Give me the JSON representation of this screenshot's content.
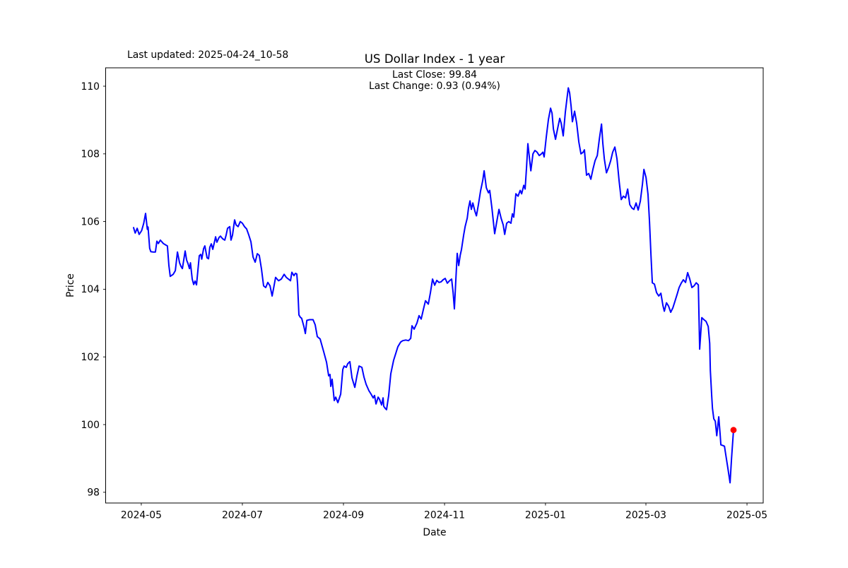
{
  "header": {
    "last_updated": "Last updated: 2025-04-24_10-58",
    "title": "US Dollar Index - 1 year",
    "annotation_line1": "Last Close: 99.84",
    "annotation_line2": "Last Change: 0.93 (0.94%)"
  },
  "chart_data": {
    "type": "line",
    "title": "US Dollar Index - 1 year",
    "xlabel": "Date",
    "ylabel": "Price",
    "series_name": "US Dollar Index",
    "date_range": [
      "2024-04-24",
      "2025-04-24"
    ],
    "ylim": [
      97.7,
      110.5
    ],
    "grid": false,
    "legend": "none",
    "line_color": "#0000ff",
    "marker_color": "#ff0000",
    "last_close": 99.84,
    "last_change": 0.93,
    "last_change_pct": "0.94%",
    "last_updated": "2025-04-24_10-58",
    "y_ticks": [
      98,
      100,
      102,
      104,
      106,
      108,
      110
    ],
    "x_ticks": [
      {
        "label": "2024-05",
        "day": 4.7
      },
      {
        "label": "2024-07",
        "day": 66.2
      },
      {
        "label": "2024-09",
        "day": 127.7
      },
      {
        "label": "2024-11",
        "day": 189.2
      },
      {
        "label": "2025-01",
        "day": 250.6
      },
      {
        "label": "2025-03",
        "day": 311.7
      },
      {
        "label": "2025-05",
        "day": 373.2
      }
    ],
    "marker_point": {
      "day": 365,
      "price": 99.84
    },
    "points": [
      [
        0,
        105.82
      ],
      [
        1,
        105.66
      ],
      [
        2.2,
        105.8
      ],
      [
        3.4,
        105.62
      ],
      [
        4.9,
        105.73
      ],
      [
        6.2,
        105.95
      ],
      [
        7.3,
        106.24
      ],
      [
        8.4,
        105.77
      ],
      [
        8.8,
        105.84
      ],
      [
        9.8,
        105.21
      ],
      [
        10.5,
        105.11
      ],
      [
        12,
        105.1
      ],
      [
        13.3,
        105.1
      ],
      [
        14.2,
        105.42
      ],
      [
        15.1,
        105.35
      ],
      [
        16.3,
        105.45
      ],
      [
        18.1,
        105.35
      ],
      [
        19.8,
        105.3
      ],
      [
        20.6,
        105.28
      ],
      [
        21.5,
        104.7
      ],
      [
        22.3,
        104.38
      ],
      [
        24.1,
        104.44
      ],
      [
        25.4,
        104.55
      ],
      [
        26.7,
        105.1
      ],
      [
        28,
        104.78
      ],
      [
        28.8,
        104.68
      ],
      [
        29.7,
        104.61
      ],
      [
        31.4,
        105.13
      ],
      [
        32.3,
        104.86
      ],
      [
        33.1,
        104.76
      ],
      [
        34,
        104.61
      ],
      [
        34.6,
        104.78
      ],
      [
        35.7,
        104.3
      ],
      [
        36.6,
        104.14
      ],
      [
        37.4,
        104.24
      ],
      [
        38.3,
        104.13
      ],
      [
        40,
        104.99
      ],
      [
        40.9,
        105.03
      ],
      [
        41.5,
        104.89
      ],
      [
        42.6,
        105.2
      ],
      [
        43.4,
        105.28
      ],
      [
        44.7,
        104.93
      ],
      [
        45.6,
        104.9
      ],
      [
        46.4,
        105.24
      ],
      [
        47.3,
        105.34
      ],
      [
        48.2,
        105.18
      ],
      [
        49.5,
        105.45
      ],
      [
        49.9,
        105.55
      ],
      [
        50.7,
        105.39
      ],
      [
        52,
        105.53
      ],
      [
        52.9,
        105.57
      ],
      [
        54.2,
        105.49
      ],
      [
        55.5,
        105.45
      ],
      [
        56.3,
        105.6
      ],
      [
        57.2,
        105.8
      ],
      [
        58.5,
        105.85
      ],
      [
        59.3,
        105.45
      ],
      [
        60.2,
        105.6
      ],
      [
        61.5,
        106.05
      ],
      [
        62.4,
        105.9
      ],
      [
        63.6,
        105.85
      ],
      [
        64.9,
        106
      ],
      [
        66.2,
        105.95
      ],
      [
        67.5,
        105.85
      ],
      [
        68.8,
        105.78
      ],
      [
        70.1,
        105.6
      ],
      [
        71.4,
        105.4
      ],
      [
        72.7,
        104.95
      ],
      [
        74,
        104.8
      ],
      [
        75.3,
        105.05
      ],
      [
        76.5,
        105
      ],
      [
        77.8,
        104.6
      ],
      [
        79.1,
        104.1
      ],
      [
        80.4,
        104.05
      ],
      [
        81.7,
        104.2
      ],
      [
        83,
        104.1
      ],
      [
        84.3,
        103.8
      ],
      [
        85.1,
        104
      ],
      [
        86.4,
        104.35
      ],
      [
        88.2,
        104.25
      ],
      [
        89.9,
        104.3
      ],
      [
        91.6,
        104.44
      ],
      [
        92.9,
        104.35
      ],
      [
        94.2,
        104.3
      ],
      [
        95.5,
        104.25
      ],
      [
        96.3,
        104.5
      ],
      [
        97.6,
        104.4
      ],
      [
        98.5,
        104.47
      ],
      [
        99.3,
        104.45
      ],
      [
        99.8,
        104.15
      ],
      [
        100.6,
        103.24
      ],
      [
        101.5,
        103.17
      ],
      [
        102.3,
        103.14
      ],
      [
        103.6,
        102.9
      ],
      [
        104.5,
        102.69
      ],
      [
        105.4,
        103.08
      ],
      [
        107.1,
        103.1
      ],
      [
        109.2,
        103.1
      ],
      [
        110.5,
        102.95
      ],
      [
        111.8,
        102.6
      ],
      [
        113.5,
        102.53
      ],
      [
        115.7,
        102.15
      ],
      [
        117.4,
        101.84
      ],
      [
        118.2,
        101.6
      ],
      [
        118.7,
        101.44
      ],
      [
        119.5,
        101.48
      ],
      [
        120,
        101.13
      ],
      [
        120.8,
        101.34
      ],
      [
        122.1,
        100.71
      ],
      [
        123,
        100.81
      ],
      [
        124.3,
        100.65
      ],
      [
        126,
        100.9
      ],
      [
        127.3,
        101.63
      ],
      [
        128.1,
        101.73
      ],
      [
        129.4,
        101.69
      ],
      [
        130.3,
        101.8
      ],
      [
        131.6,
        101.86
      ],
      [
        132.9,
        101.38
      ],
      [
        134.6,
        101.1
      ],
      [
        135.9,
        101.44
      ],
      [
        137.2,
        101.73
      ],
      [
        138.9,
        101.69
      ],
      [
        140.2,
        101.4
      ],
      [
        141.5,
        101.19
      ],
      [
        143.2,
        101
      ],
      [
        144.5,
        100.9
      ],
      [
        145.8,
        100.79
      ],
      [
        146.6,
        100.86
      ],
      [
        147.5,
        100.61
      ],
      [
        148.8,
        100.81
      ],
      [
        149.6,
        100.75
      ],
      [
        150.9,
        100.58
      ],
      [
        151.8,
        100.79
      ],
      [
        152.2,
        100.54
      ],
      [
        153.1,
        100.48
      ],
      [
        153.9,
        100.44
      ],
      [
        155.2,
        100.86
      ],
      [
        156.5,
        101.5
      ],
      [
        158.2,
        101.9
      ],
      [
        159.5,
        102.1
      ],
      [
        160.8,
        102.3
      ],
      [
        162.5,
        102.44
      ],
      [
        163.8,
        102.48
      ],
      [
        165.6,
        102.5
      ],
      [
        167.3,
        102.48
      ],
      [
        168.6,
        102.55
      ],
      [
        169.4,
        102.92
      ],
      [
        170.7,
        102.82
      ],
      [
        172.4,
        103
      ],
      [
        173.7,
        103.22
      ],
      [
        175,
        103.12
      ],
      [
        176.3,
        103.4
      ],
      [
        177.6,
        103.66
      ],
      [
        179.3,
        103.56
      ],
      [
        180.6,
        103.9
      ],
      [
        181.9,
        104.3
      ],
      [
        183.2,
        104.12
      ],
      [
        184.5,
        104.26
      ],
      [
        185.8,
        104.2
      ],
      [
        187.1,
        104.22
      ],
      [
        188.3,
        104.28
      ],
      [
        189.6,
        104.32
      ],
      [
        190.9,
        104.18
      ],
      [
        192.2,
        104.25
      ],
      [
        193.5,
        104.3
      ],
      [
        194.4,
        103.9
      ],
      [
        195.2,
        103.42
      ],
      [
        196.1,
        104.3
      ],
      [
        196.9,
        105.06
      ],
      [
        197.8,
        104.7
      ],
      [
        198.7,
        105
      ],
      [
        199.5,
        105.17
      ],
      [
        200.8,
        105.6
      ],
      [
        201.7,
        105.85
      ],
      [
        203,
        106.1
      ],
      [
        203.8,
        106.4
      ],
      [
        204.7,
        106.61
      ],
      [
        205.5,
        106.36
      ],
      [
        206.4,
        106.55
      ],
      [
        207.7,
        106.3
      ],
      [
        208.6,
        106.17
      ],
      [
        209.8,
        106.5
      ],
      [
        211.1,
        106.9
      ],
      [
        212.4,
        107.2
      ],
      [
        213.3,
        107.5
      ],
      [
        214.6,
        107
      ],
      [
        215.9,
        106.85
      ],
      [
        216.7,
        106.92
      ],
      [
        218,
        106.4
      ],
      [
        218.9,
        105.99
      ],
      [
        219.7,
        105.64
      ],
      [
        221,
        106
      ],
      [
        222.3,
        106.36
      ],
      [
        223.6,
        106.1
      ],
      [
        224.9,
        105.9
      ],
      [
        225.8,
        105.62
      ],
      [
        227,
        105.95
      ],
      [
        228.3,
        106
      ],
      [
        229.6,
        105.95
      ],
      [
        230.5,
        106.23
      ],
      [
        231.3,
        106.13
      ],
      [
        232.6,
        106.82
      ],
      [
        233.9,
        106.75
      ],
      [
        235.2,
        106.92
      ],
      [
        236.1,
        106.82
      ],
      [
        237.4,
        107.07
      ],
      [
        238.2,
        106.96
      ],
      [
        239.1,
        107.6
      ],
      [
        239.9,
        108.3
      ],
      [
        240.8,
        107.9
      ],
      [
        241.7,
        107.5
      ],
      [
        243,
        108
      ],
      [
        244.2,
        108.1
      ],
      [
        245.5,
        108.05
      ],
      [
        246.8,
        107.95
      ],
      [
        248.1,
        108
      ],
      [
        249,
        108.05
      ],
      [
        249.8,
        107.91
      ],
      [
        251.1,
        108.51
      ],
      [
        252.4,
        109.02
      ],
      [
        253.7,
        109.35
      ],
      [
        254.6,
        109.2
      ],
      [
        255.4,
        108.74
      ],
      [
        256.7,
        108.43
      ],
      [
        258,
        108.75
      ],
      [
        259.3,
        109.05
      ],
      [
        260.2,
        108.9
      ],
      [
        261.4,
        108.53
      ],
      [
        262.7,
        109.23
      ],
      [
        263.6,
        109.6
      ],
      [
        264.5,
        109.95
      ],
      [
        265.3,
        109.8
      ],
      [
        266.2,
        109.4
      ],
      [
        267,
        108.95
      ],
      [
        268.3,
        109.26
      ],
      [
        269.6,
        108.9
      ],
      [
        270.9,
        108.35
      ],
      [
        272.2,
        108
      ],
      [
        273.5,
        108.05
      ],
      [
        274.3,
        108.12
      ],
      [
        275.6,
        107.37
      ],
      [
        276.9,
        107.42
      ],
      [
        278.2,
        107.25
      ],
      [
        279.5,
        107.55
      ],
      [
        280.8,
        107.8
      ],
      [
        282.1,
        107.95
      ],
      [
        283.4,
        108.45
      ],
      [
        284.7,
        108.88
      ],
      [
        285.5,
        108.3
      ],
      [
        286.4,
        107.85
      ],
      [
        287.7,
        107.44
      ],
      [
        289,
        107.6
      ],
      [
        290.3,
        107.8
      ],
      [
        291.5,
        108.05
      ],
      [
        292.8,
        108.2
      ],
      [
        294.1,
        107.85
      ],
      [
        295.4,
        107.2
      ],
      [
        296.7,
        106.65
      ],
      [
        298,
        106.75
      ],
      [
        299.3,
        106.7
      ],
      [
        300.6,
        106.96
      ],
      [
        301.9,
        106.5
      ],
      [
        303.2,
        106.4
      ],
      [
        304.4,
        106.36
      ],
      [
        305.7,
        106.55
      ],
      [
        307,
        106.34
      ],
      [
        308.3,
        106.6
      ],
      [
        309.6,
        107.1
      ],
      [
        310.5,
        107.54
      ],
      [
        311.8,
        107.3
      ],
      [
        313,
        106.8
      ],
      [
        313.9,
        106
      ],
      [
        314.8,
        105
      ],
      [
        315.6,
        104.19
      ],
      [
        316.9,
        104.15
      ],
      [
        318.2,
        103.9
      ],
      [
        319.5,
        103.8
      ],
      [
        320.8,
        103.88
      ],
      [
        322.1,
        103.51
      ],
      [
        322.9,
        103.35
      ],
      [
        324.2,
        103.6
      ],
      [
        325.5,
        103.5
      ],
      [
        326.8,
        103.32
      ],
      [
        328.1,
        103.45
      ],
      [
        329.4,
        103.65
      ],
      [
        330.7,
        103.85
      ],
      [
        331.9,
        104.05
      ],
      [
        333.2,
        104.18
      ],
      [
        334.5,
        104.28
      ],
      [
        335.8,
        104.2
      ],
      [
        337.1,
        104.49
      ],
      [
        338.4,
        104.3
      ],
      [
        339.7,
        104.05
      ],
      [
        341,
        104.1
      ],
      [
        342.3,
        104.19
      ],
      [
        343.6,
        104.13
      ],
      [
        344.4,
        102.23
      ],
      [
        345.7,
        103.16
      ],
      [
        347,
        103.1
      ],
      [
        348.3,
        103.05
      ],
      [
        349.6,
        102.9
      ],
      [
        350.5,
        102.4
      ],
      [
        350.9,
        101.6
      ],
      [
        351.7,
        100.86
      ],
      [
        352.2,
        100.48
      ],
      [
        353,
        100.17
      ],
      [
        353.9,
        100.1
      ],
      [
        354.8,
        99.67
      ],
      [
        356,
        100.23
      ],
      [
        356.9,
        99.7
      ],
      [
        357.3,
        99.4
      ],
      [
        358.6,
        99.38
      ],
      [
        359.5,
        99.36
      ],
      [
        360.3,
        99.1
      ],
      [
        361.6,
        98.7
      ],
      [
        362.9,
        98.28
      ],
      [
        363.8,
        99
      ],
      [
        365,
        99.84
      ]
    ]
  }
}
